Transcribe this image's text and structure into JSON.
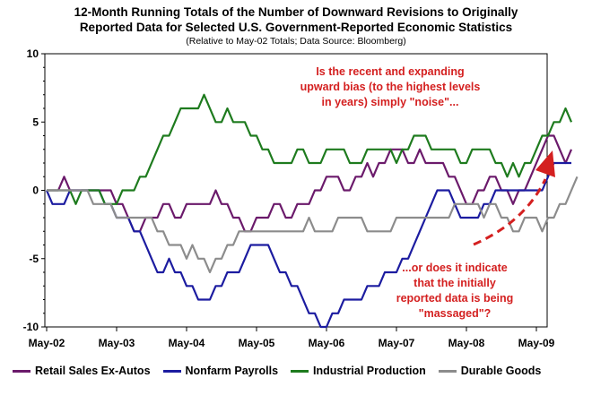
{
  "chart_data": {
    "type": "line",
    "title_line1": "12-Month Running Totals of the Number of Downward Revisions to Originally",
    "title_line2": "Reported Data for Selected U.S. Government-Reported Economic Statistics",
    "subtitle": "(Relative to May-02 Totals; Data Source: Bloomberg)",
    "xlabel": "",
    "ylabel": "",
    "ylim": [
      -10,
      10
    ],
    "yticks": [
      10,
      5,
      0,
      -5,
      -10
    ],
    "x_tick_labels": [
      "May-02",
      "May-03",
      "May-04",
      "May-05",
      "May-06",
      "May-07",
      "May-08",
      "May-09"
    ],
    "x_points_per_year": 12,
    "annotation_top": [
      "Is the recent and expanding",
      "upward bias (to the highest levels",
      "in years) simply \"noise\"..."
    ],
    "annotation_bottom": [
      "...or does it indicate",
      "that the initially",
      "reported data is being",
      "\"massaged\"?"
    ],
    "annotation_color": "#d42020",
    "series": [
      {
        "name": "Retail Sales Ex-Autos",
        "color": "#6b1a6b",
        "values": [
          0,
          0,
          0,
          1,
          0,
          0,
          0,
          0,
          0,
          0,
          0,
          0,
          -1,
          -1,
          -2,
          -3,
          -3,
          -2,
          -2,
          -2,
          -1,
          -1,
          -2,
          -2,
          -1,
          -1,
          -1,
          -1,
          -1,
          0,
          -1,
          -1,
          -2,
          -2,
          -3,
          -3,
          -2,
          -2,
          -2,
          -1,
          -1,
          -2,
          -2,
          -1,
          -1,
          -1,
          0,
          0,
          1,
          1,
          1,
          0,
          0,
          1,
          1,
          2,
          1,
          2,
          2,
          3,
          3,
          3,
          2,
          2,
          3,
          2,
          2,
          2,
          2,
          1,
          1,
          0,
          -1,
          -1,
          0,
          0,
          1,
          1,
          0,
          0,
          -1,
          0,
          0,
          1,
          2,
          3,
          4,
          4,
          3,
          2,
          3
        ]
      },
      {
        "name": "Nonfarm Payrolls",
        "color": "#1c1ca0",
        "values": [
          0,
          -1,
          -1,
          -1,
          0,
          0,
          0,
          0,
          0,
          0,
          -1,
          -1,
          -2,
          -2,
          -2,
          -3,
          -3,
          -4,
          -5,
          -6,
          -6,
          -5,
          -6,
          -6,
          -7,
          -7,
          -8,
          -8,
          -8,
          -7,
          -7,
          -6,
          -6,
          -6,
          -5,
          -4,
          -4,
          -4,
          -4,
          -5,
          -6,
          -6,
          -7,
          -7,
          -8,
          -9,
          -9,
          -10,
          -10,
          -9,
          -9,
          -8,
          -8,
          -8,
          -8,
          -7,
          -7,
          -7,
          -6,
          -6,
          -6,
          -5,
          -5,
          -4,
          -3,
          -2,
          -1,
          0,
          0,
          0,
          -1,
          -2,
          -2,
          -2,
          -2,
          -1,
          -1,
          0,
          0,
          0,
          0,
          0,
          0,
          0,
          0,
          0,
          1,
          2,
          2,
          2,
          2
        ]
      },
      {
        "name": "Industrial Production",
        "color": "#1e7b1e",
        "values": [
          0,
          0,
          0,
          0,
          0,
          -1,
          0,
          0,
          0,
          0,
          -1,
          -1,
          -1,
          0,
          0,
          0,
          1,
          1,
          2,
          3,
          4,
          4,
          5,
          6,
          6,
          6,
          6,
          7,
          6,
          5,
          5,
          6,
          5,
          5,
          5,
          4,
          4,
          3,
          3,
          2,
          2,
          2,
          2,
          3,
          3,
          2,
          2,
          2,
          3,
          3,
          3,
          3,
          2,
          2,
          2,
          3,
          3,
          3,
          3,
          3,
          2,
          3,
          3,
          4,
          4,
          4,
          3,
          3,
          3,
          3,
          3,
          2,
          2,
          3,
          3,
          3,
          3,
          2,
          2,
          1,
          2,
          1,
          2,
          2,
          3,
          4,
          4,
          5,
          5,
          6,
          5
        ]
      },
      {
        "name": "Durable Goods",
        "color": "#8c8c8c",
        "values": [
          0,
          0,
          0,
          0,
          0,
          0,
          0,
          0,
          -1,
          -1,
          -1,
          -1,
          -2,
          -2,
          -2,
          -2,
          -2,
          -2,
          -2,
          -3,
          -3,
          -4,
          -4,
          -4,
          -5,
          -4,
          -5,
          -5,
          -6,
          -5,
          -5,
          -4,
          -4,
          -3,
          -3,
          -3,
          -3,
          -3,
          -3,
          -3,
          -3,
          -3,
          -3,
          -3,
          -3,
          -2,
          -3,
          -3,
          -3,
          -3,
          -2,
          -2,
          -2,
          -2,
          -2,
          -3,
          -3,
          -3,
          -3,
          -3,
          -2,
          -2,
          -2,
          -2,
          -2,
          -2,
          -2,
          -2,
          -2,
          -2,
          -1,
          -1,
          -1,
          -1,
          -1,
          -2,
          -1,
          -1,
          -2,
          -2,
          -3,
          -3,
          -2,
          -2,
          -2,
          -3,
          -2,
          -2,
          -1,
          -1,
          0,
          1
        ]
      }
    ]
  }
}
